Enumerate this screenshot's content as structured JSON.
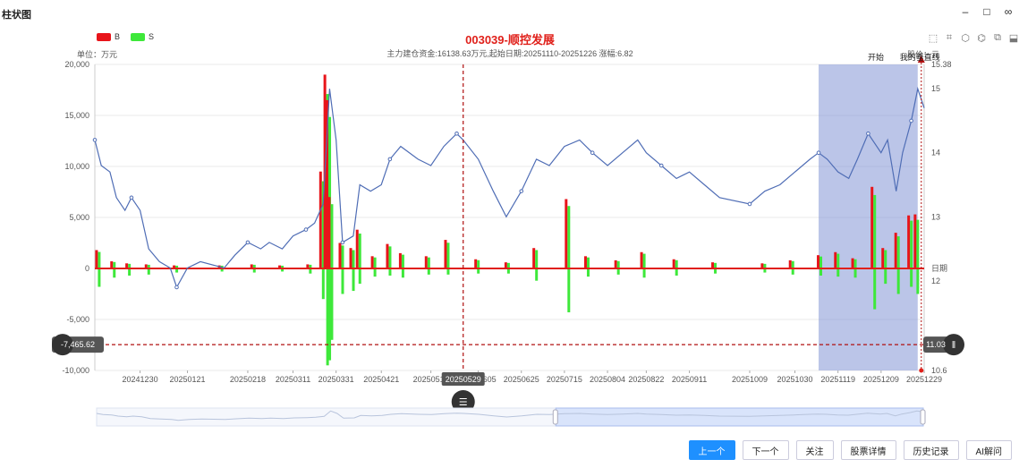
{
  "window": {
    "title": "柱状图",
    "controls": [
      "–",
      "□",
      "∞"
    ]
  },
  "legend": [
    {
      "name": "B",
      "color": "#e8141a"
    },
    {
      "name": "S",
      "color": "#3ee83a"
    }
  ],
  "unit_left": "单位：万元",
  "unit_right": "股价：元",
  "title": "003039-顺控发展",
  "subtitle": "主力建仓资金:16138.63万元,起始日期:20251110-20251226 涨幅:6.82",
  "toolbox_icons": [
    "rect-select-icon",
    "lasso-select-icon",
    "keep-select-icon",
    "clear-select-icon",
    "restore-icon",
    "save-image-icon"
  ],
  "toolbox_glyphs": [
    "⬚",
    "⌗",
    "⬡",
    "⌬",
    "⧉",
    "⬓"
  ],
  "markers": {
    "start_label": "开始",
    "vline_label": "我的垂直线"
  },
  "pointer": {
    "y_label": "-7,465.62",
    "right_label": "11.03",
    "x_label": "20250529",
    "handle_glyph": "☰",
    "pause_glyph": "‖"
  },
  "buttons": [
    "上一个",
    "下一个",
    "关注",
    "股票详情",
    "历史记录",
    "AI解问"
  ],
  "chart_data": {
    "type": "bar+line",
    "x_range": [
      "20241209",
      "20251229"
    ],
    "x_ticks": [
      "20241230",
      "20250121",
      "20250218",
      "20250311",
      "20250331",
      "20250421",
      "20250514",
      "20250605",
      "20250625",
      "20250715",
      "20250804",
      "20250822",
      "20250911",
      "20251009",
      "20251030",
      "20251119",
      "20251209",
      "20251229"
    ],
    "x_label_right": "日期",
    "y_left": {
      "min": -10000,
      "max": 20000,
      "ticks": [
        "20,000",
        "15,000",
        "10,000",
        "5,000",
        "0",
        "-5,000",
        "-10,000"
      ]
    },
    "y_right": {
      "min": 10.6,
      "max": 15.38,
      "ticks": [
        "15.38",
        "15",
        "14",
        "13",
        "12",
        "10.6"
      ]
    },
    "highlight_range": [
      "20251110",
      "20251226"
    ],
    "price_series": [
      {
        "d": "20241209",
        "p": 14.2
      },
      {
        "d": "20241212",
        "p": 13.8
      },
      {
        "d": "20241216",
        "p": 13.7
      },
      {
        "d": "20241219",
        "p": 13.3
      },
      {
        "d": "20241223",
        "p": 13.1
      },
      {
        "d": "20241226",
        "p": 13.3
      },
      {
        "d": "20241230",
        "p": 13.1
      },
      {
        "d": "20250103",
        "p": 12.5
      },
      {
        "d": "20250108",
        "p": 12.3
      },
      {
        "d": "20250113",
        "p": 12.2
      },
      {
        "d": "20250116",
        "p": 11.9
      },
      {
        "d": "20250121",
        "p": 12.2
      },
      {
        "d": "20250127",
        "p": 12.3
      },
      {
        "d": "20250207",
        "p": 12.2
      },
      {
        "d": "20250212",
        "p": 12.4
      },
      {
        "d": "20250218",
        "p": 12.6
      },
      {
        "d": "20250224",
        "p": 12.5
      },
      {
        "d": "20250228",
        "p": 12.6
      },
      {
        "d": "20250306",
        "p": 12.5
      },
      {
        "d": "20250311",
        "p": 12.7
      },
      {
        "d": "20250317",
        "p": 12.8
      },
      {
        "d": "20250321",
        "p": 12.9
      },
      {
        "d": "20250325",
        "p": 13.2
      },
      {
        "d": "20250328",
        "p": 15.0
      },
      {
        "d": "20250331",
        "p": 14.2
      },
      {
        "d": "20250403",
        "p": 12.6
      },
      {
        "d": "20250408",
        "p": 12.7
      },
      {
        "d": "20250411",
        "p": 13.5
      },
      {
        "d": "20250416",
        "p": 13.4
      },
      {
        "d": "20250421",
        "p": 13.5
      },
      {
        "d": "20250425",
        "p": 13.9
      },
      {
        "d": "20250430",
        "p": 14.1
      },
      {
        "d": "20250508",
        "p": 13.9
      },
      {
        "d": "20250514",
        "p": 13.8
      },
      {
        "d": "20250520",
        "p": 14.1
      },
      {
        "d": "20250526",
        "p": 14.3
      },
      {
        "d": "20250529",
        "p": 14.2
      },
      {
        "d": "20250605",
        "p": 13.9
      },
      {
        "d": "20250612",
        "p": 13.4
      },
      {
        "d": "20250618",
        "p": 13.0
      },
      {
        "d": "20250625",
        "p": 13.4
      },
      {
        "d": "20250702",
        "p": 13.9
      },
      {
        "d": "20250708",
        "p": 13.8
      },
      {
        "d": "20250715",
        "p": 14.1
      },
      {
        "d": "20250722",
        "p": 14.2
      },
      {
        "d": "20250728",
        "p": 14.0
      },
      {
        "d": "20250804",
        "p": 13.8
      },
      {
        "d": "20250811",
        "p": 14.0
      },
      {
        "d": "20250818",
        "p": 14.2
      },
      {
        "d": "20250822",
        "p": 14.0
      },
      {
        "d": "20250829",
        "p": 13.8
      },
      {
        "d": "20250905",
        "p": 13.6
      },
      {
        "d": "20250911",
        "p": 13.7
      },
      {
        "d": "20250918",
        "p": 13.5
      },
      {
        "d": "20250925",
        "p": 13.3
      },
      {
        "d": "20251009",
        "p": 13.2
      },
      {
        "d": "20251016",
        "p": 13.4
      },
      {
        "d": "20251023",
        "p": 13.5
      },
      {
        "d": "20251030",
        "p": 13.7
      },
      {
        "d": "20251106",
        "p": 13.9
      },
      {
        "d": "20251110",
        "p": 14.0
      },
      {
        "d": "20251114",
        "p": 13.9
      },
      {
        "d": "20251119",
        "p": 13.7
      },
      {
        "d": "20251124",
        "p": 13.6
      },
      {
        "d": "20251128",
        "p": 13.9
      },
      {
        "d": "20251203",
        "p": 14.3
      },
      {
        "d": "20251209",
        "p": 14.0
      },
      {
        "d": "20251212",
        "p": 14.2
      },
      {
        "d": "20251216",
        "p": 13.4
      },
      {
        "d": "20251219",
        "p": 14.0
      },
      {
        "d": "20251223",
        "p": 14.5
      },
      {
        "d": "20251226",
        "p": 15.0
      },
      {
        "d": "20251229",
        "p": 14.7
      }
    ],
    "bars": [
      {
        "d": "20241210",
        "b": 1800,
        "s": -1800
      },
      {
        "d": "20241217",
        "b": 700,
        "s": -900
      },
      {
        "d": "20241224",
        "b": 500,
        "s": -700
      },
      {
        "d": "20250102",
        "b": 400,
        "s": -600
      },
      {
        "d": "20250115",
        "b": 300,
        "s": -400
      },
      {
        "d": "20250205",
        "b": 300,
        "s": -300
      },
      {
        "d": "20250220",
        "b": 400,
        "s": -400
      },
      {
        "d": "20250305",
        "b": 300,
        "s": -300
      },
      {
        "d": "20250318",
        "b": 400,
        "s": -500
      },
      {
        "d": "20250324",
        "b": 9500,
        "s": -3000
      },
      {
        "d": "20250326",
        "b": 19000,
        "s": -9500
      },
      {
        "d": "20250327",
        "b": 16500,
        "s": -9000
      },
      {
        "d": "20250328",
        "b": 7000,
        "s": -7000
      },
      {
        "d": "20250402",
        "b": 2500,
        "s": -2500
      },
      {
        "d": "20250407",
        "b": 2000,
        "s": -2200
      },
      {
        "d": "20250410",
        "b": 3800,
        "s": -1500
      },
      {
        "d": "20250417",
        "b": 1200,
        "s": -800
      },
      {
        "d": "20250424",
        "b": 2400,
        "s": -700
      },
      {
        "d": "20250430",
        "b": 1500,
        "s": -900
      },
      {
        "d": "20250512",
        "b": 1200,
        "s": -600
      },
      {
        "d": "20250521",
        "b": 2800,
        "s": -600
      },
      {
        "d": "20250604",
        "b": 900,
        "s": -500
      },
      {
        "d": "20250618",
        "b": 600,
        "s": -500
      },
      {
        "d": "20250701",
        "b": 2000,
        "s": -1200
      },
      {
        "d": "20250716",
        "b": 6800,
        "s": -4300
      },
      {
        "d": "20250725",
        "b": 1200,
        "s": -800
      },
      {
        "d": "20250808",
        "b": 800,
        "s": -600
      },
      {
        "d": "20250820",
        "b": 1600,
        "s": -900
      },
      {
        "d": "20250904",
        "b": 900,
        "s": -700
      },
      {
        "d": "20250922",
        "b": 600,
        "s": -500
      },
      {
        "d": "20251015",
        "b": 500,
        "s": -400
      },
      {
        "d": "20251028",
        "b": 800,
        "s": -600
      },
      {
        "d": "20251110",
        "b": 1300,
        "s": -700
      },
      {
        "d": "20251118",
        "b": 1600,
        "s": -800
      },
      {
        "d": "20251126",
        "b": 1000,
        "s": -900
      },
      {
        "d": "20251205",
        "b": 8000,
        "s": -4000
      },
      {
        "d": "20251210",
        "b": 2000,
        "s": -1500
      },
      {
        "d": "20251216",
        "b": 3500,
        "s": -2500
      },
      {
        "d": "20251222",
        "b": 5200,
        "s": -1800
      },
      {
        "d": "20251225",
        "b": 5300,
        "s": -2500
      }
    ]
  }
}
